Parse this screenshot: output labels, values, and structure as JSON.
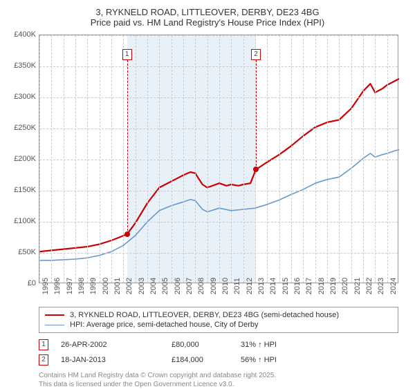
{
  "title": "3, RYKNELD ROAD, LITTLEOVER, DERBY, DE23 4BG",
  "subtitle": "Price paid vs. HM Land Registry's House Price Index (HPI)",
  "chart": {
    "type": "line",
    "xlim": [
      1995,
      2025
    ],
    "ylim": [
      0,
      400000
    ],
    "ytick_step": 50000,
    "y_tick_labels": [
      "£0",
      "£50K",
      "£100K",
      "£150K",
      "£200K",
      "£250K",
      "£300K",
      "£350K",
      "£400K"
    ],
    "x_tick_labels": [
      "1995",
      "1996",
      "1997",
      "1998",
      "1999",
      "2000",
      "2001",
      "2002",
      "2003",
      "2004",
      "2005",
      "2006",
      "2007",
      "2008",
      "2009",
      "2010",
      "2011",
      "2012",
      "2013",
      "2014",
      "2015",
      "2016",
      "2017",
      "2018",
      "2019",
      "2020",
      "2021",
      "2022",
      "2023",
      "2024"
    ],
    "grid_color": "#cccccc",
    "background_color": "#ffffff",
    "shaded_band": {
      "x_start": 2002.31,
      "x_end": 2013.05,
      "color": "#e8f0f8"
    },
    "series": [
      {
        "name": "3, RYKNELD ROAD, LITTLEOVER, DERBY, DE23 4BG (semi-detached house)",
        "color": "#cc0000",
        "line_width": 2.2,
        "points": [
          [
            1995,
            52000
          ],
          [
            1996,
            54000
          ],
          [
            1997,
            56000
          ],
          [
            1998,
            58000
          ],
          [
            1999,
            60000
          ],
          [
            2000,
            64000
          ],
          [
            2001,
            70000
          ],
          [
            2002.31,
            80000
          ],
          [
            2003,
            98000
          ],
          [
            2004,
            130000
          ],
          [
            2005,
            155000
          ],
          [
            2006,
            165000
          ],
          [
            2007,
            175000
          ],
          [
            2007.6,
            180000
          ],
          [
            2008,
            178000
          ],
          [
            2008.6,
            160000
          ],
          [
            2009,
            155000
          ],
          [
            2010,
            162000
          ],
          [
            2010.6,
            158000
          ],
          [
            2011,
            160000
          ],
          [
            2011.6,
            158000
          ],
          [
            2012,
            160000
          ],
          [
            2012.6,
            162000
          ],
          [
            2013.05,
            184000
          ],
          [
            2014,
            196000
          ],
          [
            2015,
            208000
          ],
          [
            2016,
            222000
          ],
          [
            2017,
            238000
          ],
          [
            2018,
            252000
          ],
          [
            2019,
            260000
          ],
          [
            2020,
            264000
          ],
          [
            2021,
            282000
          ],
          [
            2022,
            310000
          ],
          [
            2022.6,
            322000
          ],
          [
            2023,
            308000
          ],
          [
            2023.6,
            314000
          ],
          [
            2024,
            320000
          ],
          [
            2024.6,
            326000
          ],
          [
            2025,
            330000
          ]
        ]
      },
      {
        "name": "HPI: Average price, semi-detached house, City of Derby",
        "color": "#6699cc",
        "line_width": 1.6,
        "points": [
          [
            1995,
            38000
          ],
          [
            1996,
            38000
          ],
          [
            1997,
            39000
          ],
          [
            1998,
            40000
          ],
          [
            1999,
            42000
          ],
          [
            2000,
            46000
          ],
          [
            2001,
            52000
          ],
          [
            2002,
            62000
          ],
          [
            2003,
            78000
          ],
          [
            2004,
            100000
          ],
          [
            2005,
            118000
          ],
          [
            2006,
            126000
          ],
          [
            2007,
            132000
          ],
          [
            2007.6,
            136000
          ],
          [
            2008,
            134000
          ],
          [
            2008.6,
            120000
          ],
          [
            2009,
            116000
          ],
          [
            2010,
            122000
          ],
          [
            2011,
            118000
          ],
          [
            2012,
            120000
          ],
          [
            2013,
            122000
          ],
          [
            2014,
            128000
          ],
          [
            2015,
            135000
          ],
          [
            2016,
            144000
          ],
          [
            2017,
            152000
          ],
          [
            2018,
            162000
          ],
          [
            2019,
            168000
          ],
          [
            2020,
            172000
          ],
          [
            2021,
            186000
          ],
          [
            2022,
            202000
          ],
          [
            2022.6,
            210000
          ],
          [
            2023,
            204000
          ],
          [
            2023.6,
            208000
          ],
          [
            2024,
            210000
          ],
          [
            2024.6,
            214000
          ],
          [
            2025,
            216000
          ]
        ]
      }
    ],
    "markers": [
      {
        "id": "1",
        "x": 2002.31,
        "y": 80000
      },
      {
        "id": "2",
        "x": 2013.05,
        "y": 184000
      }
    ]
  },
  "legend": {
    "rows": [
      {
        "label": "3, RYKNELD ROAD, LITTLEOVER, DERBY, DE23 4BG (semi-detached house)",
        "color": "#cc0000",
        "width": 2.2
      },
      {
        "label": "HPI: Average price, semi-detached house, City of Derby",
        "color": "#6699cc",
        "width": 1.6
      }
    ]
  },
  "sales": [
    {
      "id": "1",
      "date": "26-APR-2002",
      "price": "£80,000",
      "pct": "31% ↑ HPI"
    },
    {
      "id": "2",
      "date": "18-JAN-2013",
      "price": "£184,000",
      "pct": "56% ↑ HPI"
    }
  ],
  "license_line1": "Contains HM Land Registry data © Crown copyright and database right 2025.",
  "license_line2": "This data is licensed under the Open Government Licence v3.0."
}
